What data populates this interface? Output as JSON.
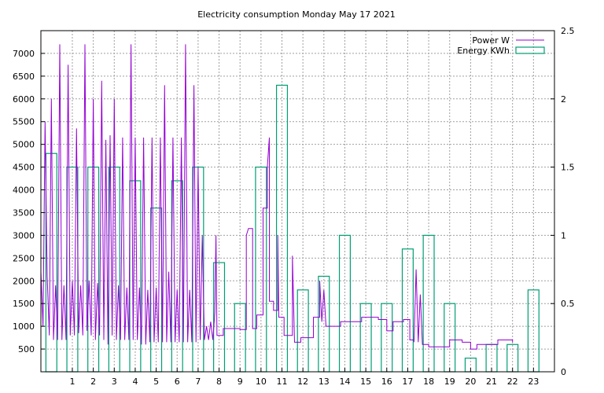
{
  "chart_data": {
    "type": "bar+line",
    "title": "Electricity consumption Monday May 17 2021",
    "xlim": [
      -0.5,
      24.0
    ],
    "ylim_left": [
      0,
      7500
    ],
    "ylim_right": [
      0,
      2.5
    ],
    "x_ticks": [
      1,
      2,
      3,
      4,
      5,
      6,
      7,
      8,
      9,
      10,
      11,
      12,
      13,
      14,
      15,
      16,
      17,
      18,
      19,
      20,
      21,
      22,
      23
    ],
    "y_left_ticks": [
      500,
      1000,
      1500,
      2000,
      2500,
      3000,
      3500,
      4000,
      4500,
      5000,
      5500,
      6000,
      6500,
      7000
    ],
    "y_right_ticks": [
      "0",
      "0.5",
      "1",
      "1.5",
      "2",
      "2.5"
    ],
    "grid": true,
    "legend_position": "top-right",
    "series": [
      {
        "name": "Power W",
        "kind": "line",
        "axis": "left",
        "color": "#9400d3",
        "points": [
          [
            -0.5,
            2200
          ],
          [
            -0.4,
            1000
          ],
          [
            -0.3,
            5500
          ],
          [
            -0.2,
            2100
          ],
          [
            -0.1,
            800
          ],
          [
            0.0,
            6000
          ],
          [
            0.1,
            700
          ],
          [
            0.2,
            1900
          ],
          [
            0.3,
            700
          ],
          [
            0.4,
            7200
          ],
          [
            0.5,
            700
          ],
          [
            0.6,
            1900
          ],
          [
            0.7,
            700
          ],
          [
            0.8,
            6750
          ],
          [
            0.9,
            800
          ],
          [
            1.0,
            2000
          ],
          [
            1.1,
            800
          ],
          [
            1.2,
            5350
          ],
          [
            1.3,
            850
          ],
          [
            1.4,
            1900
          ],
          [
            1.5,
            800
          ],
          [
            1.6,
            7200
          ],
          [
            1.7,
            900
          ],
          [
            1.8,
            2000
          ],
          [
            1.9,
            800
          ],
          [
            2.0,
            6000
          ],
          [
            2.1,
            700
          ],
          [
            2.2,
            1950
          ],
          [
            2.3,
            800
          ],
          [
            2.4,
            6400
          ],
          [
            2.5,
            700
          ],
          [
            2.6,
            5100
          ],
          [
            2.7,
            600
          ],
          [
            2.8,
            5200
          ],
          [
            2.9,
            800
          ],
          [
            3.0,
            6000
          ],
          [
            3.1,
            700
          ],
          [
            3.2,
            1900
          ],
          [
            3.3,
            700
          ],
          [
            3.4,
            5150
          ],
          [
            3.5,
            700
          ],
          [
            3.6,
            1850
          ],
          [
            3.7,
            700
          ],
          [
            3.8,
            7200
          ],
          [
            3.9,
            700
          ],
          [
            4.0,
            5150
          ],
          [
            4.1,
            700
          ],
          [
            4.2,
            1850
          ],
          [
            4.3,
            600
          ],
          [
            4.4,
            5150
          ],
          [
            4.5,
            600
          ],
          [
            4.6,
            1800
          ],
          [
            4.7,
            650
          ],
          [
            4.8,
            5150
          ],
          [
            4.9,
            650
          ],
          [
            5.0,
            1850
          ],
          [
            5.1,
            650
          ],
          [
            5.2,
            5150
          ],
          [
            5.3,
            650
          ],
          [
            5.4,
            6300
          ],
          [
            5.5,
            650
          ],
          [
            5.6,
            2200
          ],
          [
            5.7,
            650
          ],
          [
            5.8,
            5150
          ],
          [
            5.9,
            650
          ],
          [
            6.0,
            1800
          ],
          [
            6.1,
            650
          ],
          [
            6.2,
            5150
          ],
          [
            6.3,
            650
          ],
          [
            6.4,
            7200
          ],
          [
            6.5,
            650
          ],
          [
            6.6,
            1800
          ],
          [
            6.7,
            650
          ],
          [
            6.8,
            6300
          ],
          [
            6.9,
            650
          ],
          [
            7.0,
            4500
          ],
          [
            7.1,
            700
          ],
          [
            7.2,
            3000
          ],
          [
            7.3,
            700
          ],
          [
            7.4,
            1000
          ],
          [
            7.5,
            700
          ],
          [
            7.6,
            1100
          ],
          [
            7.7,
            700
          ],
          [
            7.8,
            1300
          ],
          [
            7.85,
            3000
          ],
          [
            7.9,
            800
          ],
          [
            8.2,
            800
          ],
          [
            8.2,
            950
          ],
          [
            9.0,
            950
          ],
          [
            9.0,
            930
          ],
          [
            9.3,
            930
          ],
          [
            9.3,
            3000
          ],
          [
            9.4,
            3150
          ],
          [
            9.6,
            3150
          ],
          [
            9.6,
            950
          ],
          [
            9.8,
            950
          ],
          [
            9.8,
            1250
          ],
          [
            10.1,
            1250
          ],
          [
            10.1,
            3600
          ],
          [
            10.3,
            3600
          ],
          [
            10.3,
            4500
          ],
          [
            10.4,
            5150
          ],
          [
            10.4,
            1550
          ],
          [
            10.6,
            1550
          ],
          [
            10.6,
            1350
          ],
          [
            10.8,
            1350
          ],
          [
            10.8,
            3000
          ],
          [
            10.85,
            1200
          ],
          [
            11.1,
            1200
          ],
          [
            11.1,
            800
          ],
          [
            11.5,
            800
          ],
          [
            11.5,
            2550
          ],
          [
            11.6,
            650
          ],
          [
            11.9,
            650
          ],
          [
            11.9,
            750
          ],
          [
            12.5,
            750
          ],
          [
            12.5,
            1200
          ],
          [
            12.8,
            1200
          ],
          [
            12.8,
            2000
          ],
          [
            12.9,
            1100
          ],
          [
            13.0,
            1800
          ],
          [
            13.1,
            1000
          ],
          [
            13.8,
            1000
          ],
          [
            13.8,
            1100
          ],
          [
            14.8,
            1100
          ],
          [
            14.8,
            1200
          ],
          [
            15.6,
            1200
          ],
          [
            15.6,
            1150
          ],
          [
            16.0,
            1150
          ],
          [
            16.0,
            900
          ],
          [
            16.3,
            900
          ],
          [
            16.3,
            1100
          ],
          [
            16.8,
            1100
          ],
          [
            16.8,
            1150
          ],
          [
            17.1,
            1150
          ],
          [
            17.1,
            700
          ],
          [
            17.3,
            700
          ],
          [
            17.3,
            650
          ],
          [
            17.4,
            2250
          ],
          [
            17.5,
            650
          ],
          [
            17.6,
            1700
          ],
          [
            17.7,
            600
          ],
          [
            18.0,
            600
          ],
          [
            18.0,
            550
          ],
          [
            19.0,
            550
          ],
          [
            19.0,
            700
          ],
          [
            19.6,
            700
          ],
          [
            19.6,
            650
          ],
          [
            20.0,
            650
          ],
          [
            20.0,
            500
          ],
          [
            20.3,
            500
          ],
          [
            20.3,
            600
          ],
          [
            21.3,
            600
          ],
          [
            21.3,
            700
          ],
          [
            22.0,
            700
          ],
          [
            22.0,
            650
          ]
        ]
      },
      {
        "name": "Energy KWh",
        "kind": "bar",
        "axis": "right",
        "color": "#009e73",
        "bar_width": 0.52,
        "x": [
          0,
          1,
          2,
          3,
          4,
          5,
          6,
          7,
          8,
          9,
          10,
          11,
          12,
          13,
          14,
          15,
          16,
          17,
          18,
          19,
          20,
          21,
          22,
          23
        ],
        "values": [
          1.6,
          1.5,
          1.5,
          1.5,
          1.4,
          1.2,
          1.4,
          1.5,
          0.8,
          0.5,
          1.5,
          2.1,
          0.6,
          0.7,
          1.0,
          0.5,
          0.5,
          0.9,
          1.0,
          0.5,
          0.1,
          0.2,
          0.2,
          0.6
        ]
      }
    ]
  }
}
